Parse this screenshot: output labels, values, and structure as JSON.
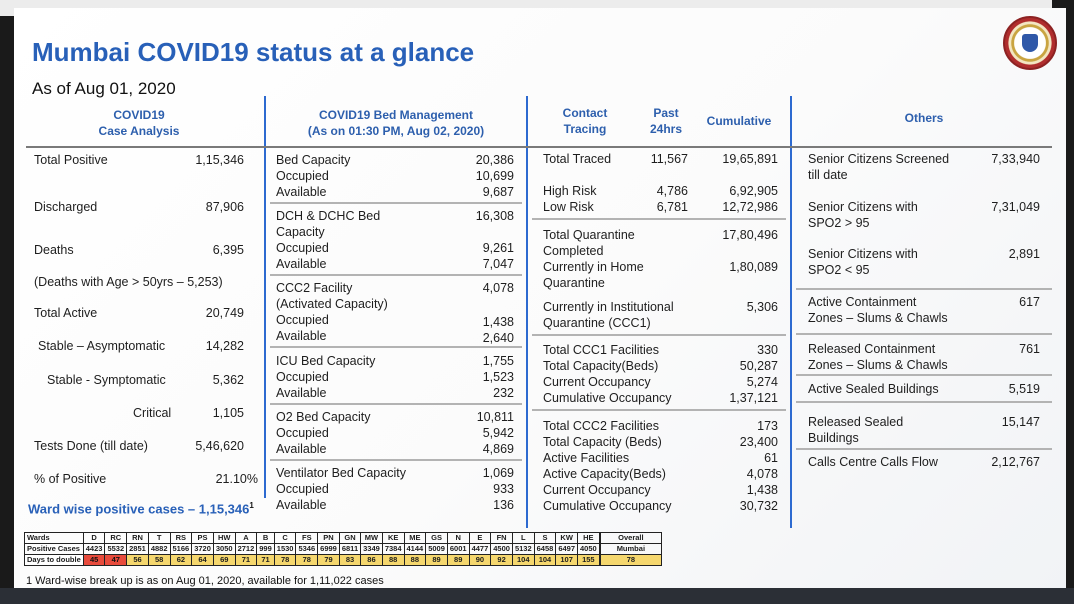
{
  "header": {
    "title": "Mumbai COVID19 status at a glance",
    "as_of": "As of Aug 01, 2020"
  },
  "logo": {
    "icon": "mcgm-seal-icon",
    "caption": "बृहन्मुंबई महानगरपालिका"
  },
  "col_headers": {
    "case_analysis_1": "COVID19",
    "case_analysis_2": "Case Analysis",
    "bed_mgmt_1": "COVID19 Bed Management",
    "bed_mgmt_2": "(As on 01:30 PM, Aug 02, 2020)",
    "contact_1": "Contact",
    "contact_2": "Tracing",
    "past_1": "Past",
    "past_2": "24hrs",
    "cumulative": "Cumulative",
    "others": "Others"
  },
  "cases": {
    "total_positive_label": "Total Positive",
    "total_positive": "1,15,346",
    "discharged_label": "Discharged",
    "discharged": "87,906",
    "deaths_label": "Deaths",
    "deaths": "6,395",
    "deaths_age": "(Deaths with Age > 50yrs – 5,253)",
    "total_active_label": "Total Active",
    "total_active": "20,749",
    "asymptomatic_label": "Stable – Asymptomatic",
    "asymptomatic": "14,282",
    "symptomatic_label": "Stable - Symptomatic",
    "symptomatic": "5,362",
    "critical_label": "Critical",
    "critical": "1,105",
    "tests_label": "Tests Done (till date)",
    "tests": "5,46,620",
    "pct_positive_label": "% of Positive",
    "pct_positive": "21.10%"
  },
  "beds": {
    "bed_capacity_label": "Bed Capacity",
    "bed_capacity": "20,386",
    "occupied_label": "Occupied",
    "available_label": "Available",
    "bed_occupied": "10,699",
    "bed_available": "9,687",
    "dch_label_1": "DCH & DCHC Bed",
    "dch_label_2": "Capacity",
    "dch_capacity": "16,308",
    "dch_occupied": "9,261",
    "dch_available": "7,047",
    "ccc2_label_1": "CCC2 Facility",
    "ccc2_label_2": "(Activated Capacity)",
    "ccc2_capacity": "4,078",
    "ccc2_occupied": "1,438",
    "ccc2_available": "2,640",
    "icu_label": "ICU Bed Capacity",
    "icu_capacity": "1,755",
    "icu_occupied": "1,523",
    "icu_available": "232",
    "o2_label": "O2 Bed Capacity",
    "o2_capacity": "10,811",
    "o2_occupied": "5,942",
    "o2_available": "4,869",
    "vent_label": "Ventilator Bed Capacity",
    "vent_capacity": "1,069",
    "vent_occupied": "933",
    "vent_available": "136"
  },
  "contact": {
    "total_traced_label": "Total Traced",
    "total_traced_24": "11,567",
    "total_traced_cum": "19,65,891",
    "high_risk_label": "High Risk",
    "high_risk_24": "4,786",
    "high_risk_cum": "6,92,905",
    "low_risk_label": "Low Risk",
    "low_risk_24": "6,781",
    "low_risk_cum": "12,72,986",
    "quar_label_1": "Total Quarantine",
    "quar_label_2": "Completed",
    "quar_completed": "17,80,496",
    "home_label_1": "Currently in Home",
    "home_label_2": "Quarantine",
    "home": "1,80,089",
    "inst_label_1": "Currently in Institutional",
    "inst_label_2": "Quarantine (CCC1)",
    "inst": "5,306",
    "ccc1_fac_label": "Total CCC1 Facilities",
    "ccc1_fac": "330",
    "ccc1_cap_label": "Total Capacity(Beds)",
    "ccc1_cap": "50,287",
    "ccc1_occ_label": "Current Occupancy",
    "ccc1_occ": "5,274",
    "ccc1_cum_label": "Cumulative Occupancy",
    "ccc1_cum": "1,37,121",
    "ccc2_fac_label": "Total CCC2 Facilities",
    "ccc2_fac": "173",
    "ccc2_cap_label": "Total Capacity (Beds)",
    "ccc2_cap": "23,400",
    "ccc2_act_label": "Active Facilities",
    "ccc2_act": "61",
    "ccc2_actcap_label": "Active Capacity(Beds)",
    "ccc2_actcap": "4,078",
    "ccc2_occ_label": "Current Occupancy",
    "ccc2_occ": "1,438",
    "ccc2_cum_label": "Cumulative Occupancy",
    "ccc2_cum": "30,732"
  },
  "others": {
    "sc_screened_1": "Senior Citizens Screened",
    "sc_screened_2": "till date",
    "sc_screened": "7,33,940",
    "sc_above_1": "Senior Citizens with",
    "sc_above_2": "SPO2 > 95",
    "sc_above": "7,31,049",
    "sc_below_1": "Senior Citizens with",
    "sc_below_2": "SPO2 < 95",
    "sc_below": "2,891",
    "active_cz_1": "Active Containment",
    "active_cz_2": "Zones – Slums & Chawls",
    "active_cz": "617",
    "released_cz_1": "Released Containment",
    "released_cz_2": "Zones – Slums & Chawls",
    "released_cz": "761",
    "sealed_label": "Active Sealed Buildings",
    "sealed": "5,519",
    "rel_sealed_1": "Released Sealed",
    "rel_sealed_2": "Buildings",
    "rel_sealed": "15,147",
    "calls_label": "Calls Centre Calls Flow",
    "calls": "2,12,767"
  },
  "ward": {
    "title": "Ward wise positive cases – 1,15,346",
    "title_sup": "1",
    "row_labels": [
      "Wards",
      "Positive Cases",
      "Days to double"
    ],
    "overall_label_1": "Overall",
    "overall_label_2": "Mumbai",
    "overall_days": "78",
    "wards": [
      {
        "name": "D",
        "cases": "4423",
        "days": "45",
        "red": true
      },
      {
        "name": "RC",
        "cases": "5532",
        "days": "47",
        "red": true
      },
      {
        "name": "RN",
        "cases": "2851",
        "days": "56",
        "red": false
      },
      {
        "name": "T",
        "cases": "4882",
        "days": "58",
        "red": false
      },
      {
        "name": "RS",
        "cases": "5166",
        "days": "62",
        "red": false
      },
      {
        "name": "PS",
        "cases": "3720",
        "days": "64",
        "red": false
      },
      {
        "name": "HW",
        "cases": "3050",
        "days": "69",
        "red": false
      },
      {
        "name": "A",
        "cases": "2712",
        "days": "71",
        "red": false
      },
      {
        "name": "B",
        "cases": "999",
        "days": "71",
        "red": false
      },
      {
        "name": "C",
        "cases": "1530",
        "days": "78",
        "red": false
      },
      {
        "name": "FS",
        "cases": "5346",
        "days": "78",
        "red": false
      },
      {
        "name": "PN",
        "cases": "6999",
        "days": "79",
        "red": false
      },
      {
        "name": "GN",
        "cases": "6811",
        "days": "83",
        "red": false
      },
      {
        "name": "MW",
        "cases": "3349",
        "days": "86",
        "red": false
      },
      {
        "name": "KE",
        "cases": "7384",
        "days": "88",
        "red": false
      },
      {
        "name": "ME",
        "cases": "4144",
        "days": "88",
        "red": false
      },
      {
        "name": "GS",
        "cases": "5009",
        "days": "89",
        "red": false
      },
      {
        "name": "N",
        "cases": "6001",
        "days": "89",
        "red": false
      },
      {
        "name": "E",
        "cases": "4477",
        "days": "90",
        "red": false
      },
      {
        "name": "FN",
        "cases": "4500",
        "days": "92",
        "red": false
      },
      {
        "name": "L",
        "cases": "5132",
        "days": "104",
        "red": false
      },
      {
        "name": "S",
        "cases": "6458",
        "days": "104",
        "red": false
      },
      {
        "name": "KW",
        "cases": "6497",
        "days": "107",
        "red": false
      },
      {
        "name": "HE",
        "cases": "4050",
        "days": "155",
        "red": false
      }
    ],
    "footnote": "1 Ward-wise break up is as on Aug 01, 2020, available for 1,11,022 cases"
  },
  "colors": {
    "title_blue": "#2860b8",
    "header_blue": "#2d5fad",
    "divider_blue": "#2d6ad0",
    "days_yellow": "#f5d76e",
    "days_red": "#e84b3c"
  }
}
